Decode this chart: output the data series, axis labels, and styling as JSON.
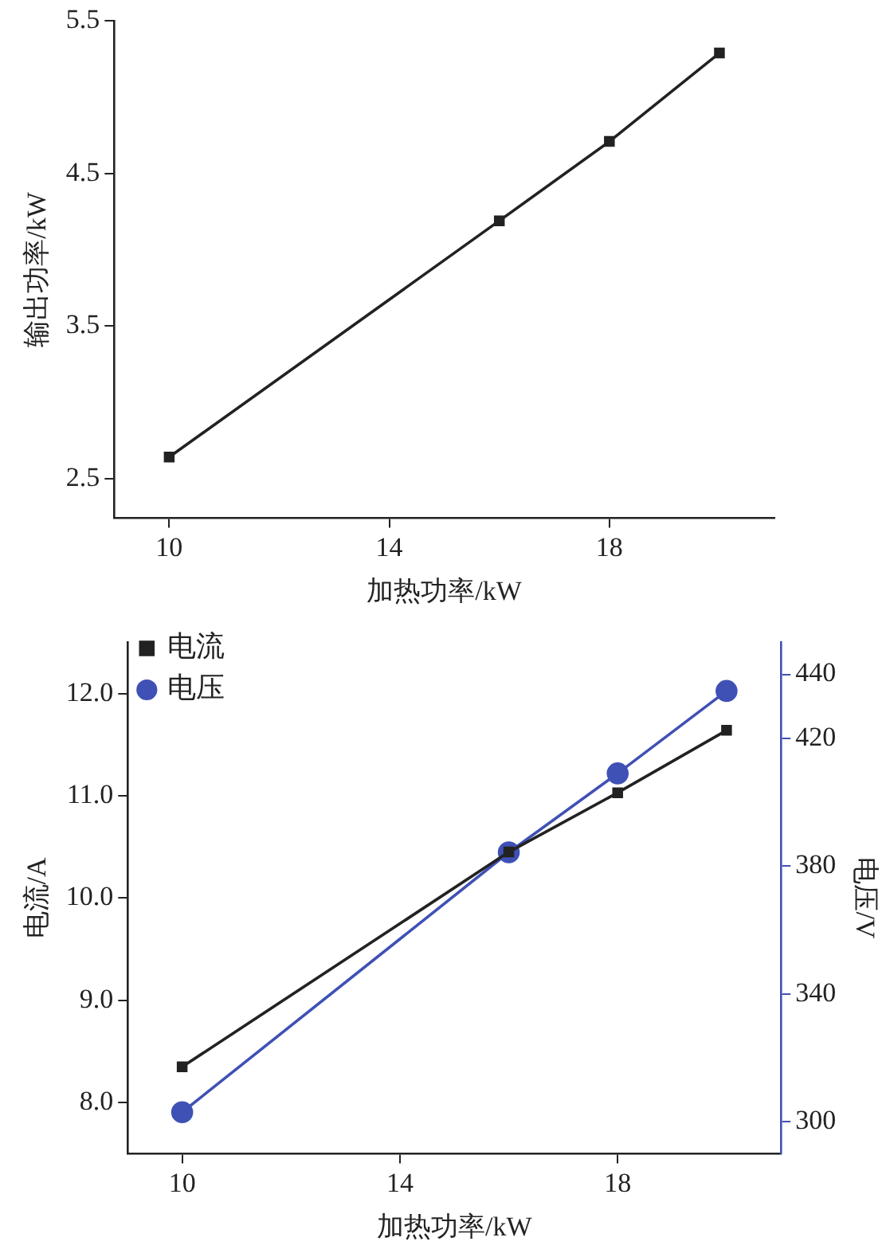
{
  "chart_data": [
    {
      "type": "line",
      "xlabel": "加热功率/kW",
      "ylabel": "输出功率/kW",
      "x": [
        10,
        16,
        18,
        20
      ],
      "xlim": [
        9,
        21
      ],
      "xticks": [
        10,
        14,
        18
      ],
      "ylim": [
        2.24,
        5.5
      ],
      "yticks": [
        2.5,
        3.5,
        4.5,
        5.5
      ],
      "series": [
        {
          "color": "#222222",
          "values": [
            2.64,
            4.19,
            4.71,
            5.29
          ]
        }
      ],
      "marker": "square",
      "grid": false,
      "legend": false
    },
    {
      "type": "line",
      "xlabel": "加热功率/kW",
      "ylabel": "电流/A",
      "y2label": "电压/V",
      "x": [
        10,
        16,
        18,
        20
      ],
      "xlim": [
        9,
        21
      ],
      "xticks": [
        10,
        14,
        18
      ],
      "ylim": [
        7.5,
        12.5
      ],
      "yticks": [
        {
          "value": 8,
          "label": "8.0"
        },
        {
          "value": 9,
          "label": "9.0"
        },
        {
          "value": 10,
          "label": "10.0"
        },
        {
          "value": 11,
          "label": "11.0"
        },
        {
          "value": 12,
          "label": "12.0"
        }
      ],
      "y2lim": [
        290,
        450
      ],
      "y2ticks": [
        300,
        340,
        380,
        420,
        440
      ],
      "series": [
        {
          "name": "电流",
          "color": "#222222",
          "marker": "square",
          "values": [
            8.35,
            10.45,
            11.03,
            11.64
          ]
        },
        {
          "name": "电压",
          "color": "#3f51b5",
          "marker": "circle",
          "axis": "y2",
          "values": [
            303,
            384.3,
            409,
            434.8
          ]
        }
      ],
      "grid": false,
      "legend": "top left"
    }
  ]
}
